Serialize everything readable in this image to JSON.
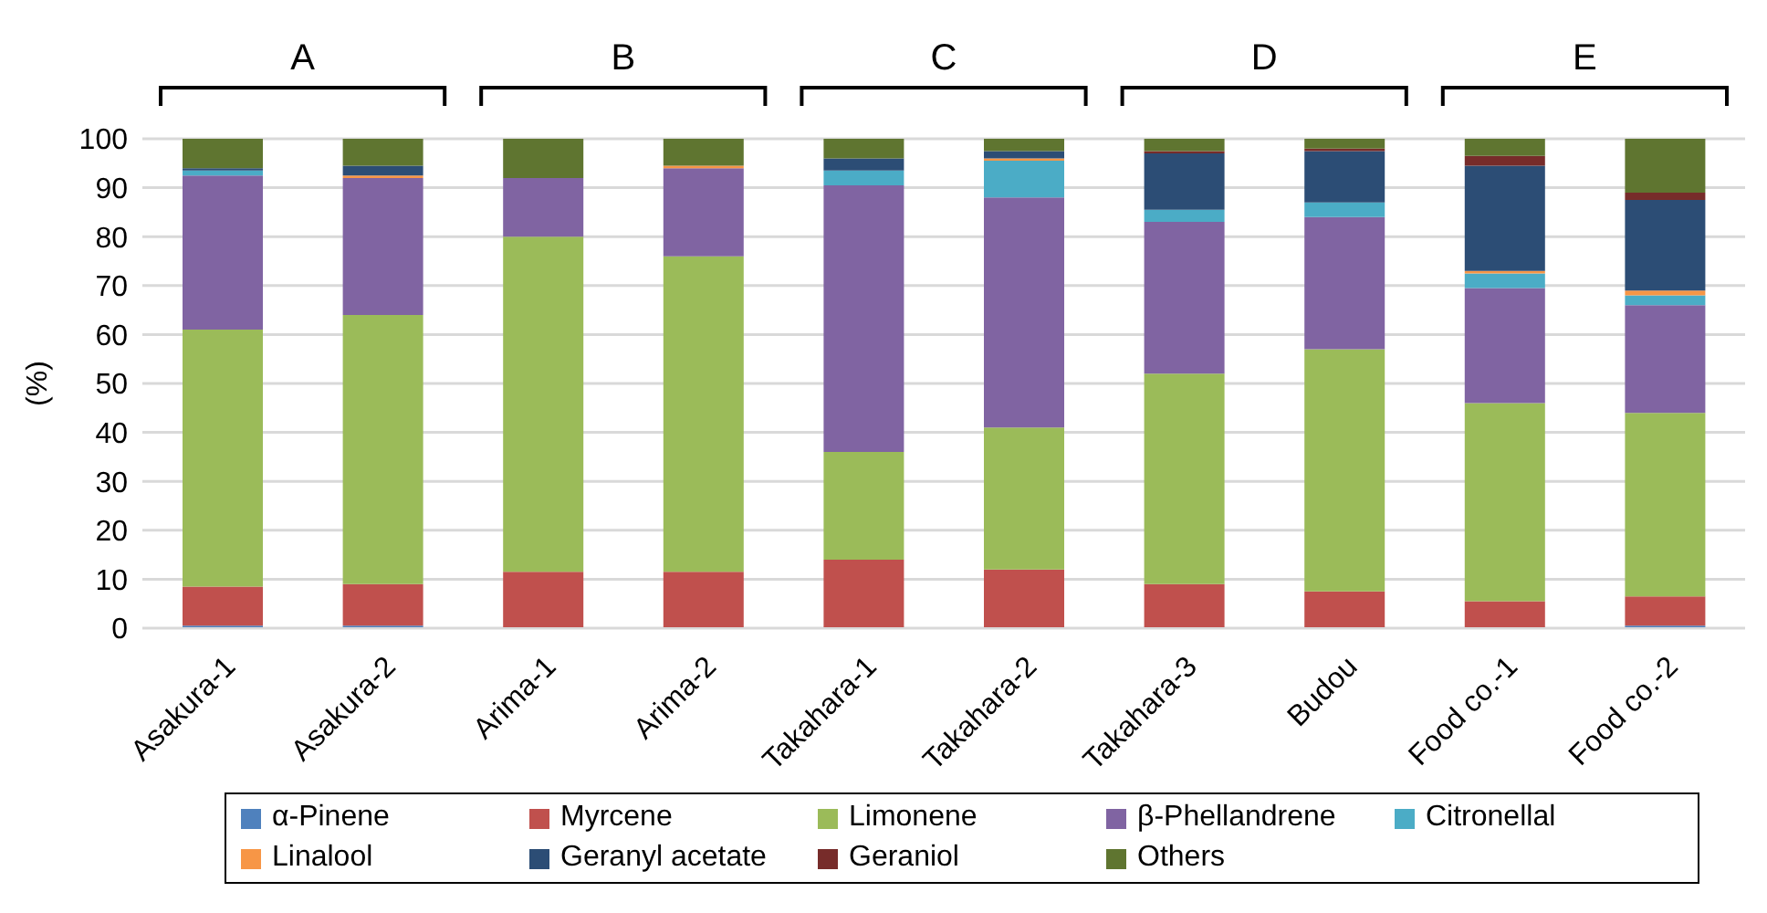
{
  "chart_data": {
    "type": "bar",
    "stacked": true,
    "ylabel": "(%)",
    "annotations": [
      "A",
      "B",
      "C",
      "D",
      "E"
    ],
    "categories": [
      "Asakura-1",
      "Asakura-2",
      "Arima-1",
      "Arima-2",
      "Takahara-1",
      "Takahara-2",
      "Takahara-3",
      "Budou",
      "Food co.-1",
      "Food co.-2"
    ],
    "series": [
      {
        "name": "α-Pinene",
        "color": "#4f81bd",
        "values": [
          0.5,
          0.5,
          0,
          0,
          0,
          0,
          0,
          0,
          0,
          0.5
        ]
      },
      {
        "name": "Myrcene",
        "color": "#c0504d",
        "values": [
          8,
          8.5,
          11.5,
          11.5,
          14,
          12,
          9,
          7.5,
          5.5,
          6
        ]
      },
      {
        "name": "Limonene",
        "color": "#9bbb59",
        "values": [
          52.5,
          55,
          68.5,
          64.5,
          22,
          29,
          43,
          49.5,
          40.5,
          37.5
        ]
      },
      {
        "name": "β-Phellandrene",
        "color": "#8064a2",
        "values": [
          31.5,
          28,
          12,
          18,
          54.5,
          47,
          31,
          27,
          23.5,
          22
        ]
      },
      {
        "name": "Citronellal",
        "color": "#4bacc6",
        "values": [
          1,
          0,
          0,
          0,
          3,
          7.5,
          2.5,
          3,
          3,
          2
        ]
      },
      {
        "name": "Linalool",
        "color": "#f79646",
        "values": [
          0,
          0.5,
          0,
          0.5,
          0,
          0.5,
          0,
          0,
          0.5,
          1
        ]
      },
      {
        "name": "Geranyl acetate",
        "color": "#2c4d75",
        "values": [
          0.5,
          2,
          0,
          0,
          2.5,
          1.5,
          11.5,
          10.5,
          21.5,
          18.5
        ]
      },
      {
        "name": "Geraniol",
        "color": "#772c2a",
        "values": [
          0,
          0,
          0,
          0,
          0,
          0,
          0.5,
          0.5,
          2,
          1.5
        ]
      },
      {
        "name": "Others",
        "color": "#5f7530",
        "values": [
          6,
          5.5,
          8,
          5.5,
          4,
          2.5,
          2.5,
          2,
          3.5,
          11
        ]
      }
    ],
    "ylim": [
      0,
      100
    ],
    "yticks": [
      0,
      10,
      20,
      30,
      40,
      50,
      60,
      70,
      80,
      90,
      100
    ],
    "grid": "y",
    "legend": "bottom"
  }
}
